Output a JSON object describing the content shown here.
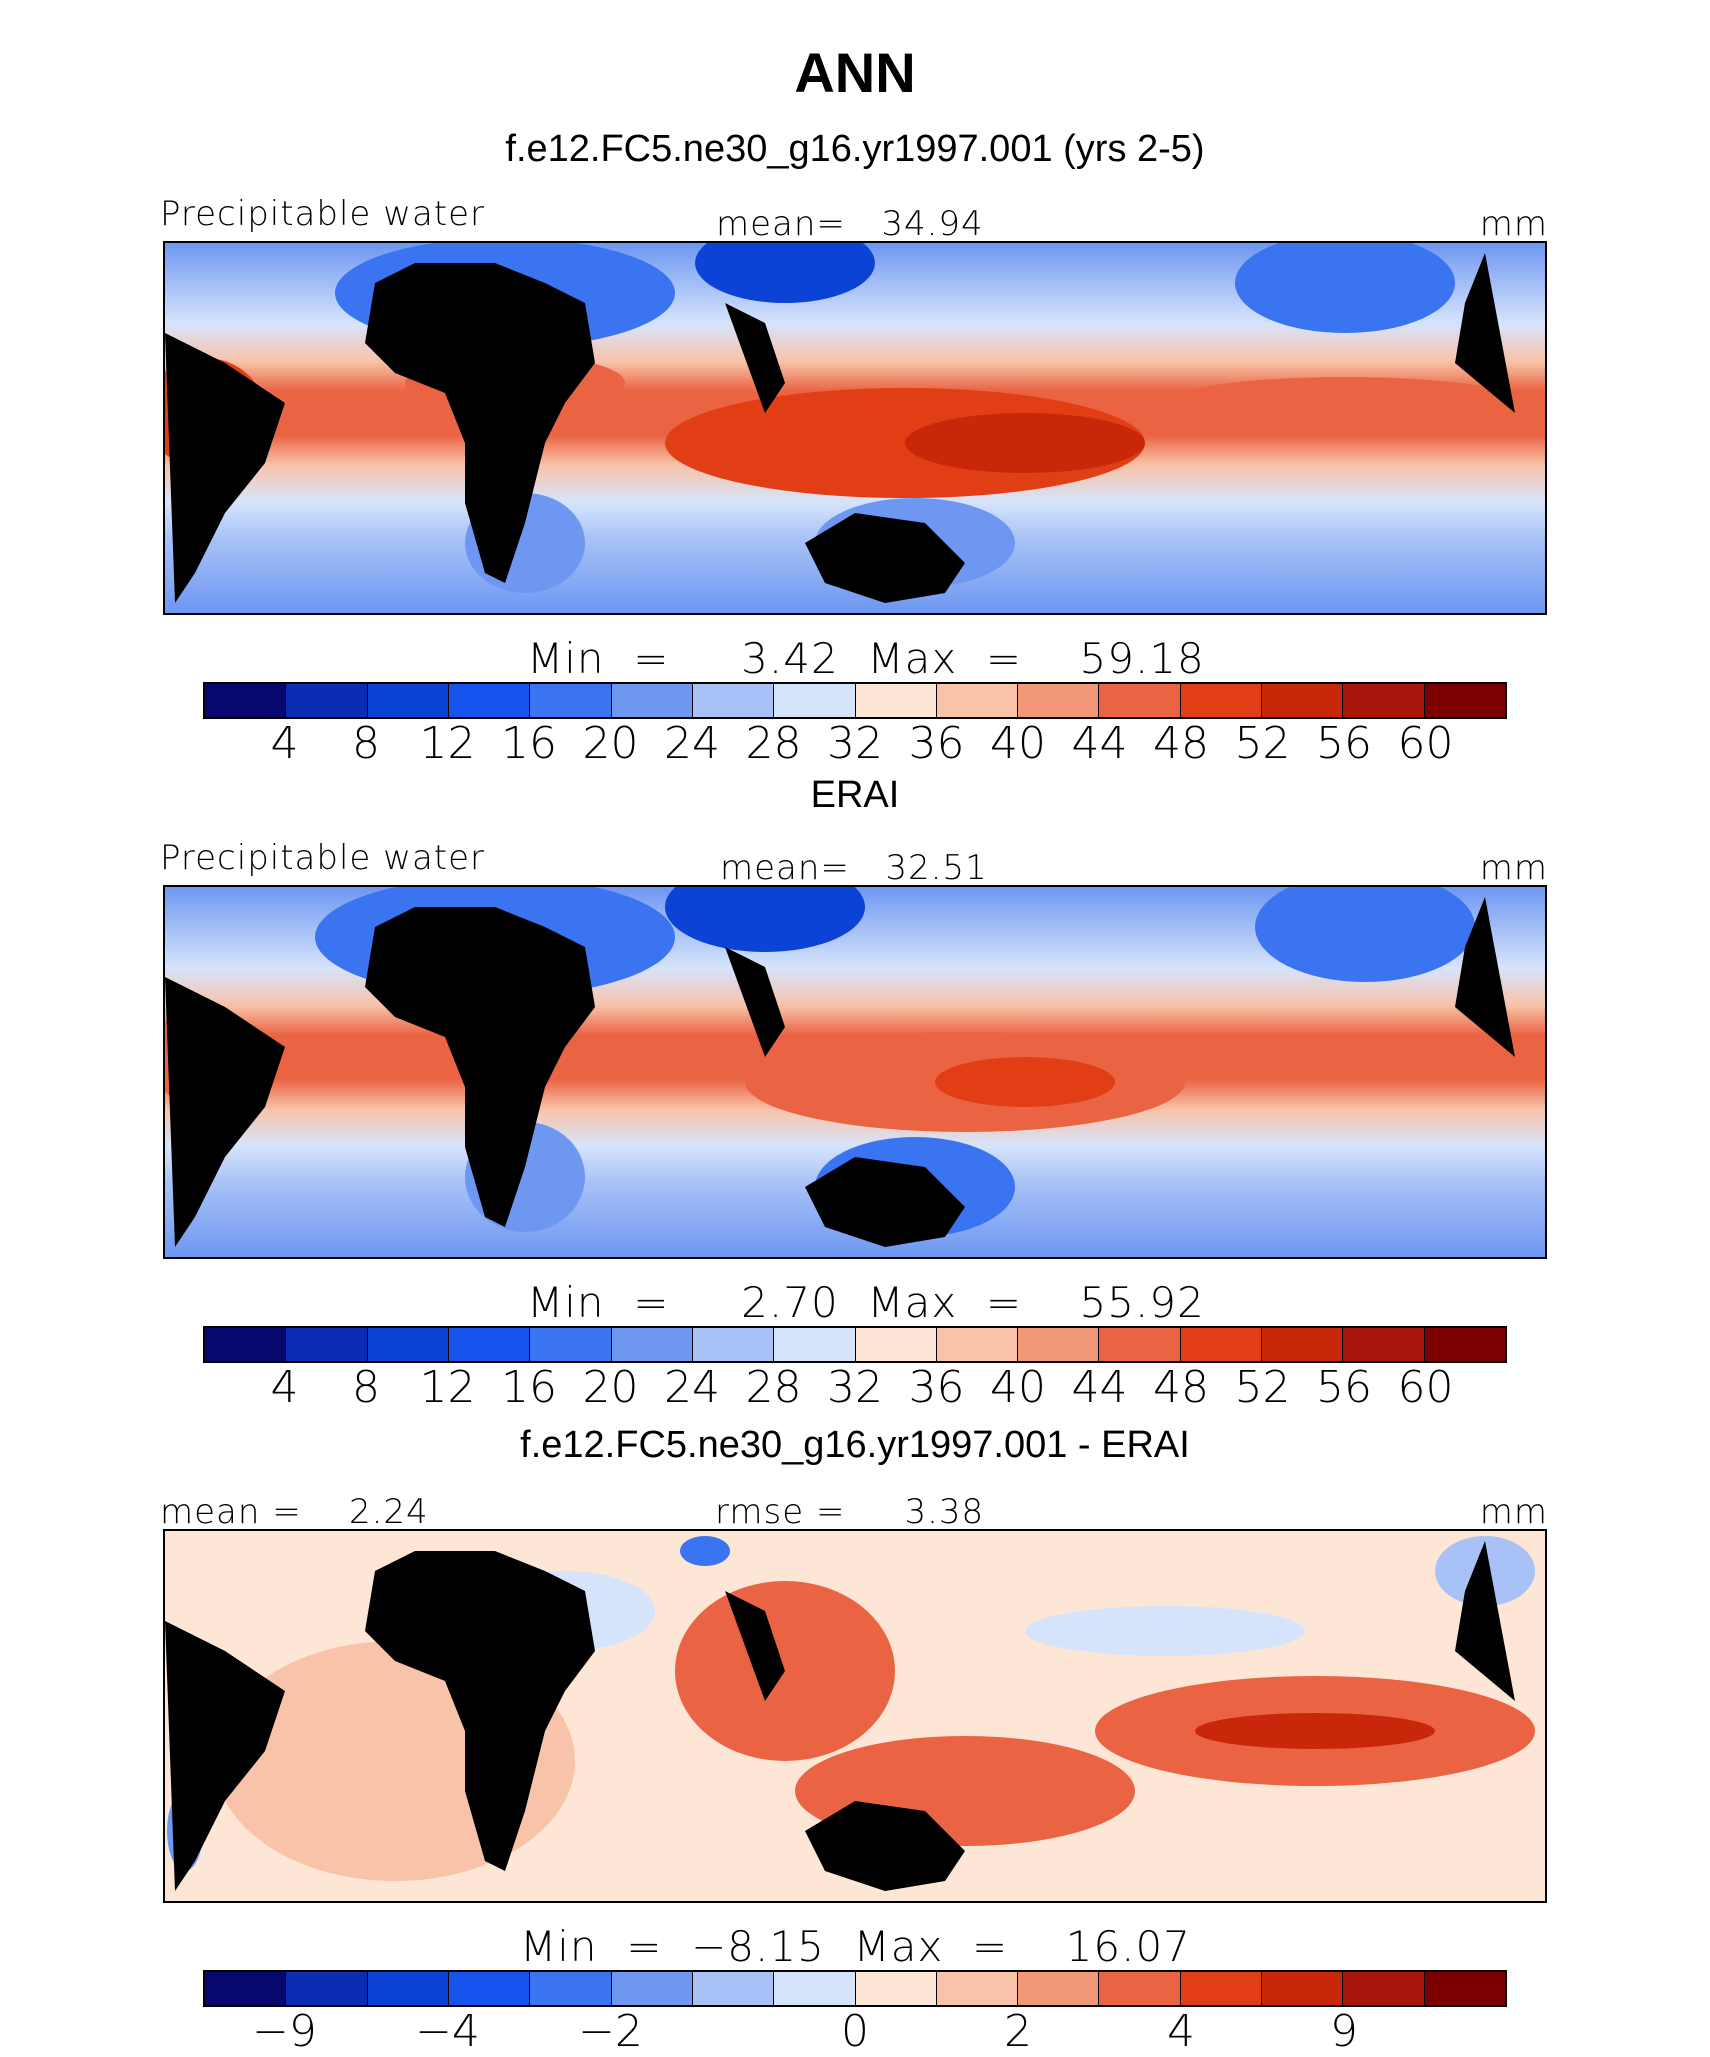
{
  "figure": {
    "title": "ANN",
    "colors": [
      "#08076e",
      "#0a2db3",
      "#0b43d7",
      "#1753ee",
      "#3b74f0",
      "#6e97f2",
      "#a8c2f7",
      "#d6e4fb",
      "#fde6d6",
      "#f8c3a8",
      "#f29876",
      "#ea6444",
      "#e23e16",
      "#c82809",
      "#a8150a",
      "#7d0000"
    ]
  },
  "chart_data": [
    {
      "type": "heatmap",
      "title": "f.e12.FC5.ne30_g16.yr1997.001 (yrs 2-5)",
      "left_label": "Precipitable water",
      "center_label": "mean=   34.94",
      "right_label": "mm",
      "mean": 34.94,
      "min": 3.42,
      "max": 59.18,
      "min_max_text": "Min  =     3.42  Max  =    59.18",
      "colorbar_levels": [
        "4",
        "8",
        "12",
        "16",
        "20",
        "24",
        "28",
        "32",
        "36",
        "40",
        "44",
        "48",
        "52",
        "56",
        "60"
      ]
    },
    {
      "type": "heatmap",
      "title": "ERAI",
      "left_label": "Precipitable water",
      "center_label": "mean=   32.51",
      "right_label": "mm",
      "mean": 32.51,
      "min": 2.7,
      "max": 55.92,
      "min_max_text": "Min  =     2.70  Max  =    55.92",
      "colorbar_levels": [
        "4",
        "8",
        "12",
        "16",
        "20",
        "24",
        "28",
        "32",
        "36",
        "40",
        "44",
        "48",
        "52",
        "56",
        "60"
      ]
    },
    {
      "type": "heatmap",
      "title": "f.e12.FC5.ne30_g16.yr1997.001 - ERAI",
      "left_label": "mean =    2.24",
      "center_label": "rmse =     3.38",
      "right_label": "mm",
      "mean": 2.24,
      "rmse": 3.38,
      "min": -8.15,
      "max": 16.07,
      "min_max_text": "Min  =  −8.15  Max  =    16.07",
      "colorbar_ticks": [
        {
          "label": "−9",
          "boundary": 1
        },
        {
          "label": "−4",
          "boundary": 3
        },
        {
          "label": "−2",
          "boundary": 5
        },
        {
          "label": "0",
          "boundary": 8
        },
        {
          "label": "2",
          "boundary": 10
        },
        {
          "label": "4",
          "boundary": 12
        },
        {
          "label": "9",
          "boundary": 14
        }
      ]
    }
  ]
}
